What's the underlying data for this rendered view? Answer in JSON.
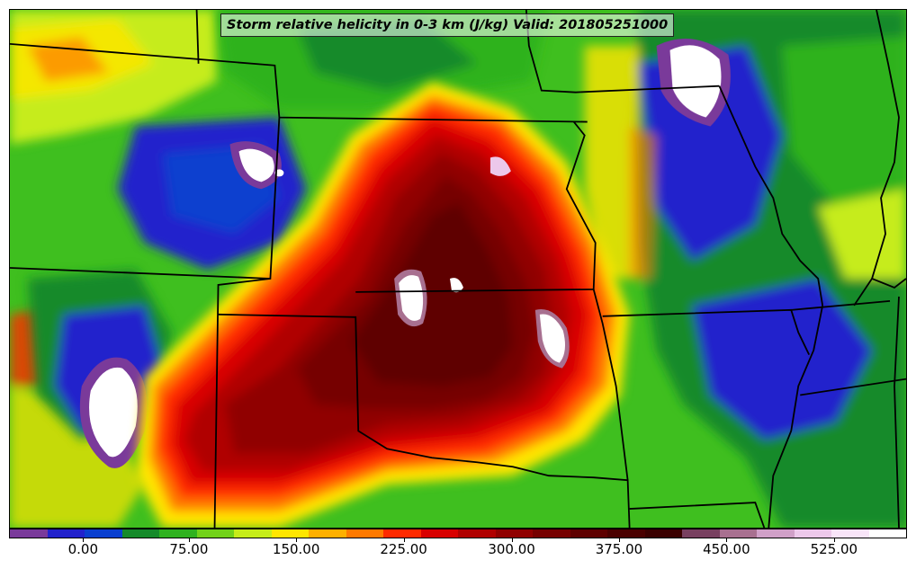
{
  "title": "Storm relative helicity in 0-3 km (J/kg) Valid: 201805251000",
  "colorbar": {
    "colors": [
      "#7a3a9a",
      "#2222cc",
      "#0a3fcf",
      "#158a2a",
      "#2fb21f",
      "#72d21a",
      "#c6ec1a",
      "#ffe600",
      "#ffb000",
      "#ff7a00",
      "#ff2a00",
      "#d80000",
      "#b00000",
      "#900000",
      "#760000",
      "#5e0000",
      "#4a0000",
      "#3a0000",
      "#784060",
      "#a87090",
      "#d0a0c8",
      "#ecc8ea",
      "#f8e4f8",
      "#ffffff"
    ],
    "ticks": [
      {
        "label": "0.00",
        "pos": 0.0825
      },
      {
        "label": "75.00",
        "pos": 0.2003
      },
      {
        "label": "150.00",
        "pos": 0.3198
      },
      {
        "label": "225.00",
        "pos": 0.4395
      },
      {
        "label": "300.00",
        "pos": 0.5597
      },
      {
        "label": "375.00",
        "pos": 0.6793
      },
      {
        "label": "450.00",
        "pos": 0.799
      },
      {
        "label": "525.00",
        "pos": 0.9187
      }
    ]
  }
}
